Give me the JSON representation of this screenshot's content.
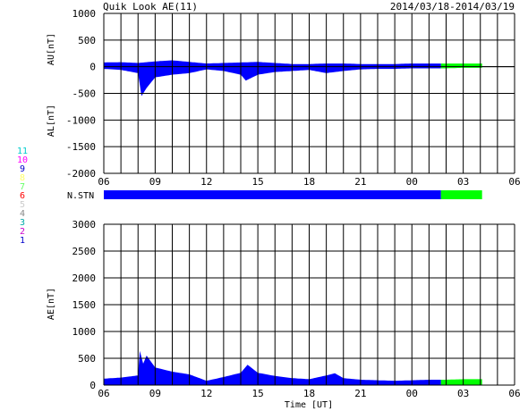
{
  "header": {
    "title": "Quik Look AE(11)",
    "date_range": "2014/03/18-2014/03/19"
  },
  "colors": {
    "provisional": "#0000ff",
    "realtime": "#00ff00",
    "grid": "#000000"
  },
  "station_legend": [
    {
      "label": "11",
      "color": "#00cccc"
    },
    {
      "label": "10",
      "color": "#ff00ff"
    },
    {
      "label": "9",
      "color": "#0000cc"
    },
    {
      "label": "8",
      "color": "#ffff66"
    },
    {
      "label": "7",
      "color": "#66ff66"
    },
    {
      "label": "6",
      "color": "#ff0000"
    },
    {
      "label": "5",
      "color": "#cccccc"
    },
    {
      "label": "4",
      "color": "#888888"
    },
    {
      "label": "3",
      "color": "#00aaaa"
    },
    {
      "label": "2",
      "color": "#cc00cc"
    },
    {
      "label": "1",
      "color": "#0000cc"
    }
  ],
  "nstn": {
    "label": "N.STN"
  },
  "x_axis": {
    "ticks": [
      "06",
      "09",
      "12",
      "15",
      "18",
      "21",
      "00",
      "03",
      "06"
    ],
    "label": "Time [UT]"
  },
  "chart_data": [
    {
      "type": "area",
      "ylabel_top": "AU[nT]",
      "ylabel_bottom": "AL[nT]",
      "ylim": [
        -2000,
        1000
      ],
      "yticks": [
        1000,
        500,
        0,
        -500,
        -1000,
        -1500,
        -2000
      ],
      "xlim_hours": [
        6,
        30
      ],
      "green_start_hour": 25.7,
      "data_end_hour": 28.1,
      "au": {
        "x": [
          6,
          7,
          8,
          9,
          10,
          11,
          12,
          13,
          14,
          15,
          16,
          17,
          18,
          19,
          20,
          21,
          22,
          23,
          24,
          25,
          26,
          27,
          28
        ],
        "y": [
          80,
          85,
          70,
          100,
          120,
          90,
          60,
          70,
          80,
          90,
          70,
          50,
          50,
          60,
          60,
          50,
          50,
          50,
          60,
          60,
          60,
          60,
          60
        ]
      },
      "al": {
        "x": [
          6,
          7,
          8,
          8.2,
          8.5,
          9,
          10,
          11,
          12,
          13,
          14,
          14.3,
          15,
          16,
          17,
          18,
          19,
          20,
          21,
          22,
          23,
          24,
          25,
          26,
          27,
          28
        ],
        "y": [
          -40,
          -60,
          -120,
          -550,
          -400,
          -200,
          -150,
          -120,
          -50,
          -80,
          -150,
          -260,
          -150,
          -100,
          -80,
          -60,
          -120,
          -80,
          -50,
          -40,
          -40,
          -30,
          -30,
          -30,
          -20,
          -20
        ]
      }
    },
    {
      "type": "area",
      "ylabel": "AE[nT]",
      "ylim": [
        0,
        3000
      ],
      "yticks": [
        3000,
        2500,
        2000,
        1500,
        1000,
        500,
        0
      ],
      "xlim_hours": [
        6,
        30
      ],
      "green_start_hour": 25.7,
      "data_end_hour": 28.1,
      "ae": {
        "x": [
          6,
          7,
          8,
          8.1,
          8.3,
          8.5,
          9,
          10,
          11,
          12,
          13,
          14,
          14.4,
          15,
          16,
          17,
          18,
          19,
          19.5,
          20,
          21,
          22,
          23,
          24,
          25,
          26,
          27,
          28
        ],
        "y": [
          120,
          140,
          180,
          640,
          400,
          550,
          330,
          250,
          200,
          80,
          150,
          230,
          380,
          230,
          170,
          130,
          110,
          180,
          220,
          130,
          100,
          90,
          80,
          90,
          100,
          100,
          110,
          110
        ]
      }
    }
  ]
}
